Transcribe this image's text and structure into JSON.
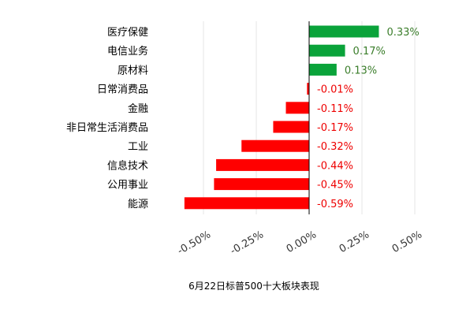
{
  "chart_data": {
    "type": "bar",
    "orientation": "horizontal",
    "title": "6月22日标普500十大板块表现",
    "categories": [
      "医疗保健",
      "电信业务",
      "原材料",
      "日常消费品",
      "金融",
      "非日常生活消费品",
      "工业",
      "信息技术",
      "公用事业",
      "能源"
    ],
    "values": [
      0.33,
      0.17,
      0.13,
      -0.01,
      -0.11,
      -0.17,
      -0.32,
      -0.44,
      -0.45,
      -0.59
    ],
    "value_labels": [
      "0.33%",
      "0.17%",
      "0.13%",
      "-0.01%",
      "-0.11%",
      "-0.17%",
      "-0.32%",
      "-0.44%",
      "-0.45%",
      "-0.59%"
    ],
    "xlim": [
      -0.6,
      0.5
    ],
    "xticks": [
      -0.5,
      -0.25,
      0,
      0.25,
      0.5
    ],
    "xtick_labels": [
      "-0.50%",
      "-0.25%",
      "0.00%",
      "0.25%",
      "0.50%"
    ],
    "xtick_rotation_deg": -30,
    "grid": "vertical",
    "legend": "none",
    "colors": {
      "positive_bar": "#0aa33a",
      "negative_bar": "#ff0000",
      "positive_label": "#3a7d2a",
      "negative_label": "#ee0000",
      "grid": "#e6e6e6",
      "zero_axis": "#000000"
    }
  }
}
